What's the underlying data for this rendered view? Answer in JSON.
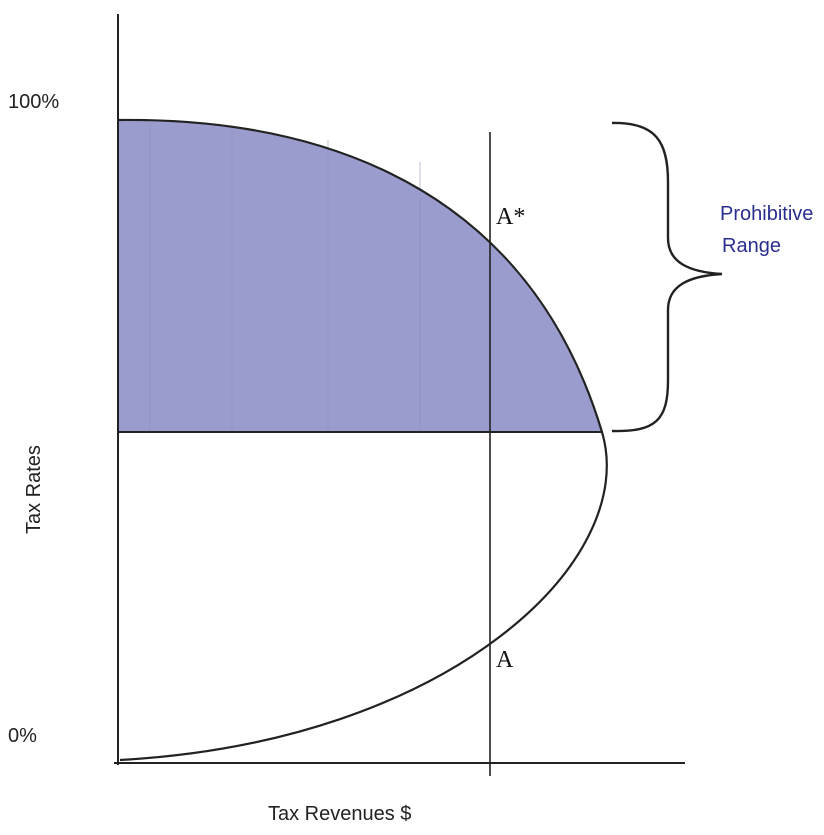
{
  "diagram": {
    "y_axis": {
      "label": "Tax Rates",
      "top_tick": "100%",
      "bottom_tick": "0%"
    },
    "x_axis": {
      "label": "Tax Revenues $"
    },
    "points": {
      "upper": "A*",
      "lower": "A"
    },
    "range_label_line1": "Prohibitive",
    "range_label_line2": "Range",
    "colors": {
      "shaded_region": "#9b9cce",
      "curve": "#222222",
      "range_text": "#2a2f8f"
    }
  }
}
